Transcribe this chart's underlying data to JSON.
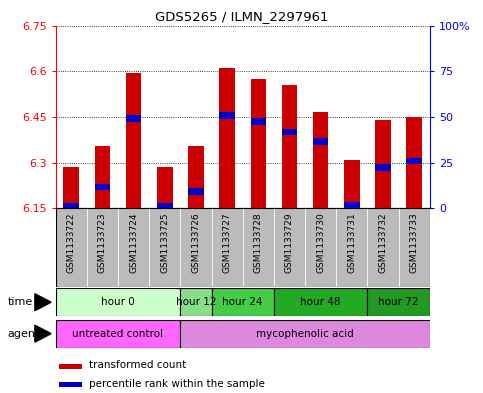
{
  "title": "GDS5265 / ILMN_2297961",
  "samples": [
    "GSM1133722",
    "GSM1133723",
    "GSM1133724",
    "GSM1133725",
    "GSM1133726",
    "GSM1133727",
    "GSM1133728",
    "GSM1133729",
    "GSM1133730",
    "GSM1133731",
    "GSM1133732",
    "GSM1133733"
  ],
  "bar_tops": [
    6.285,
    6.355,
    6.595,
    6.285,
    6.355,
    6.61,
    6.575,
    6.555,
    6.465,
    6.31,
    6.44,
    6.45
  ],
  "bar_base": 6.15,
  "blue_marker_values": [
    6.155,
    6.22,
    6.445,
    6.155,
    6.205,
    6.455,
    6.435,
    6.4,
    6.37,
    6.16,
    6.285,
    6.305
  ],
  "ylim": [
    6.15,
    6.75
  ],
  "yticks": [
    6.15,
    6.3,
    6.45,
    6.6,
    6.75
  ],
  "ytick_labels": [
    "6.15",
    "6.3",
    "6.45",
    "6.6",
    "6.75"
  ],
  "y2lim": [
    0,
    100
  ],
  "y2ticks": [
    0,
    25,
    50,
    75,
    100
  ],
  "y2tick_labels": [
    "0",
    "25",
    "50",
    "75",
    "100%"
  ],
  "bar_color": "#CC0000",
  "blue_color": "#0000CC",
  "time_groups": [
    {
      "label": "hour 0",
      "indices": [
        0,
        1,
        2,
        3
      ],
      "color": "#ccffcc"
    },
    {
      "label": "hour 12",
      "indices": [
        4
      ],
      "color": "#88dd88"
    },
    {
      "label": "hour 24",
      "indices": [
        5,
        6
      ],
      "color": "#44cc44"
    },
    {
      "label": "hour 48",
      "indices": [
        7,
        8,
        9
      ],
      "color": "#22aa22"
    },
    {
      "label": "hour 72",
      "indices": [
        10,
        11
      ],
      "color": "#229922"
    }
  ],
  "agent_groups": [
    {
      "label": "untreated control",
      "indices": [
        0,
        1,
        2,
        3
      ],
      "color": "#ff66ff"
    },
    {
      "label": "mycophenolic acid",
      "indices": [
        4,
        5,
        6,
        7,
        8,
        9,
        10,
        11
      ],
      "color": "#dd88dd"
    }
  ],
  "sample_bg_color": "#bbbbbb",
  "plot_bg_color": "#ffffff"
}
